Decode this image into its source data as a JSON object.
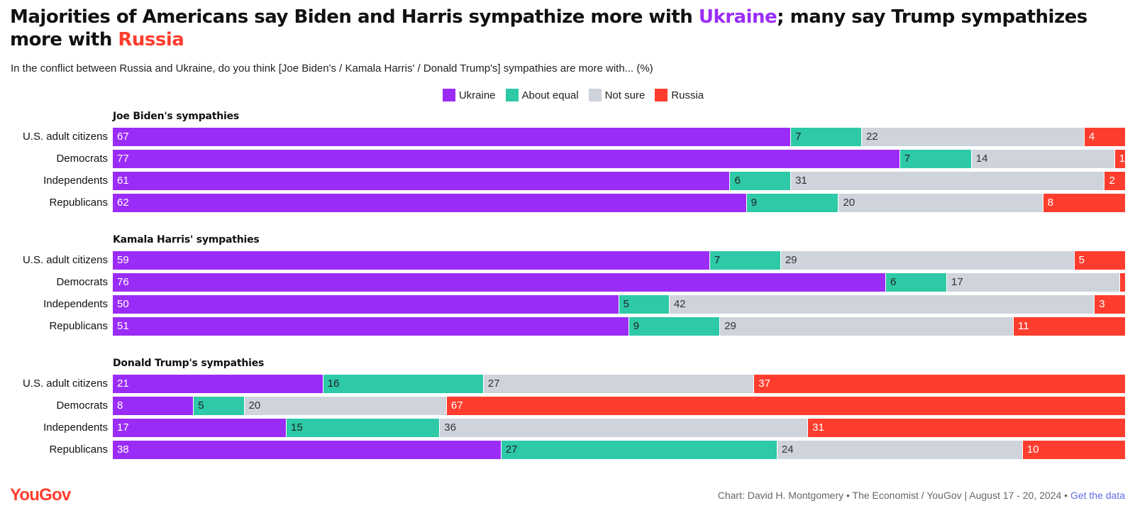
{
  "title": {
    "part1": "Majorities of Americans say Biden and Harris sympathize more with ",
    "highlight1": "Ukraine",
    "part2": "; many say Trump sympathizes more with ",
    "highlight2": "Russia"
  },
  "subtitle": "In the conflict between Russia and Ukraine, do you think [Joe Biden's / Kamala Harris' / Donald Trump's] sympathies are more with... (%)",
  "footer": {
    "logo": "YouGov",
    "credit": "Chart: David H. Montgomery • The Economist / YouGov | August 17 - 20, 2024 • ",
    "link": "Get the data"
  },
  "colors": {
    "ukraine": "#9b2cf7",
    "equal": "#2ec9a7",
    "not_sure": "#cfd3dc",
    "russia": "#ff3d2e"
  },
  "chart_data": {
    "type": "bar",
    "orientation": "horizontal-stacked",
    "legend_placement": "top-center",
    "legend": [
      "Ukraine",
      "About equal",
      "Not sure",
      "Russia"
    ],
    "categories": [
      "U.S. adult citizens",
      "Democrats",
      "Independents",
      "Republicans"
    ],
    "panels": [
      {
        "title": "Joe Biden's sympathies",
        "rows": [
          {
            "label": "U.S. adult citizens",
            "values": [
              67,
              7,
              22,
              4
            ]
          },
          {
            "label": "Democrats",
            "values": [
              77,
              7,
              14,
              1
            ]
          },
          {
            "label": "Independents",
            "values": [
              61,
              6,
              31,
              2
            ]
          },
          {
            "label": "Republicans",
            "values": [
              62,
              9,
              20,
              8
            ]
          }
        ]
      },
      {
        "title": "Kamala Harris' sympathies",
        "rows": [
          {
            "label": "U.S. adult citizens",
            "values": [
              59,
              7,
              29,
              5
            ]
          },
          {
            "label": "Democrats",
            "values": [
              76,
              6,
              17,
              0.5
            ]
          },
          {
            "label": "Independents",
            "values": [
              50,
              5,
              42,
              3
            ]
          },
          {
            "label": "Republicans",
            "values": [
              51,
              9,
              29,
              11
            ]
          }
        ]
      },
      {
        "title": "Donald Trump's sympathies",
        "rows": [
          {
            "label": "U.S. adult citizens",
            "values": [
              21,
              16,
              27,
              37
            ]
          },
          {
            "label": "Democrats",
            "values": [
              8,
              5,
              20,
              67
            ]
          },
          {
            "label": "Independents",
            "values": [
              17,
              15,
              36,
              31
            ]
          },
          {
            "label": "Republicans",
            "values": [
              38,
              27,
              24,
              10
            ]
          }
        ]
      }
    ]
  }
}
